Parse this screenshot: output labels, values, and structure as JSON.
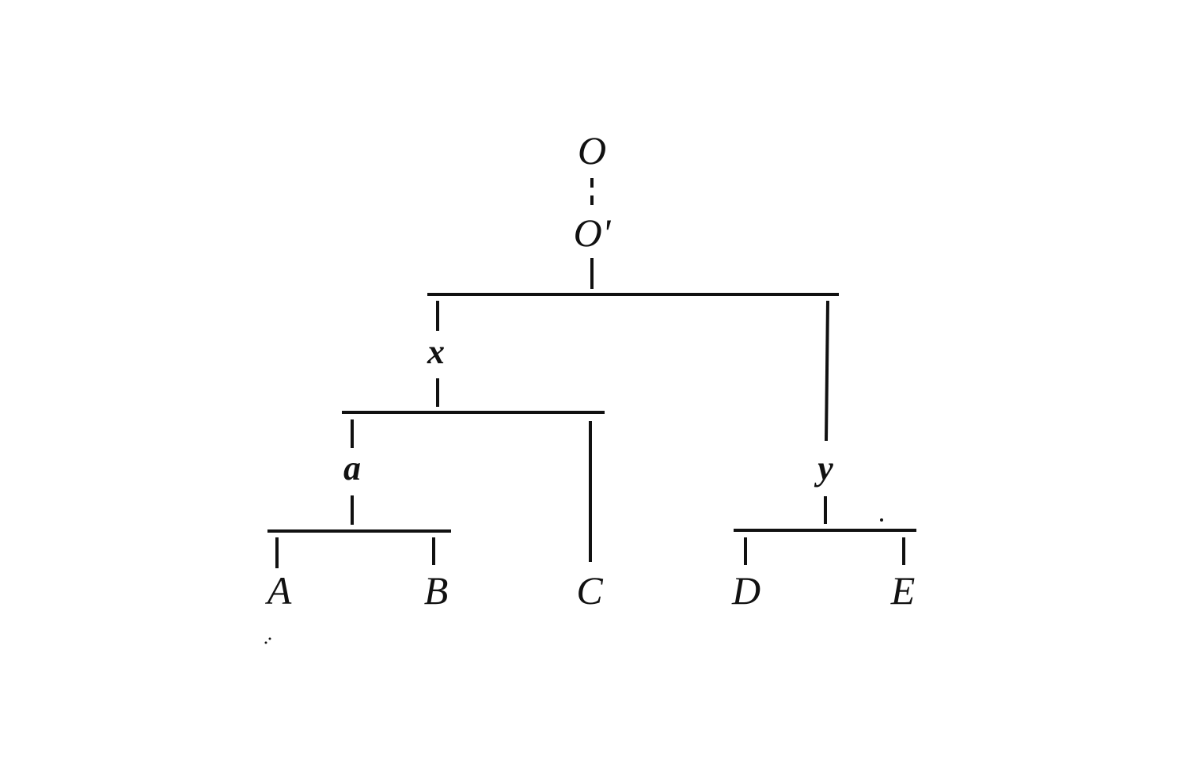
{
  "diagram": {
    "type": "stemma-tree",
    "nodes": {
      "root_top": "O",
      "root_second": "O'",
      "x": "x",
      "y": "y",
      "a": "a",
      "A": "A",
      "B": "B",
      "C": "C",
      "D": "D",
      "E": "E"
    },
    "edges": [
      {
        "from": "O",
        "to": "O'",
        "style": "dashed"
      },
      {
        "from": "O'",
        "to": "x",
        "style": "solid"
      },
      {
        "from": "O'",
        "to": "y",
        "style": "solid"
      },
      {
        "from": "x",
        "to": "a",
        "style": "solid"
      },
      {
        "from": "x",
        "to": "C",
        "style": "solid"
      },
      {
        "from": "a",
        "to": "A",
        "style": "solid"
      },
      {
        "from": "a",
        "to": "B",
        "style": "solid"
      },
      {
        "from": "y",
        "to": "D",
        "style": "solid"
      },
      {
        "from": "y",
        "to": "E",
        "style": "solid"
      }
    ],
    "line_color": "#111111"
  }
}
